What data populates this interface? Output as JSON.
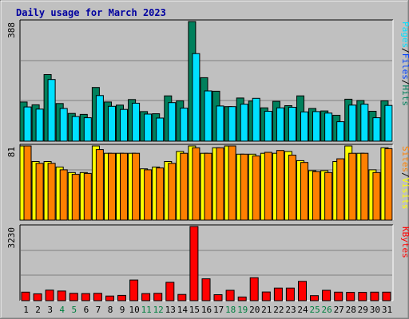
{
  "chart_data": [
    {
      "type": "bar",
      "title": "Daily usage for March 2023",
      "categories": [
        "1",
        "2",
        "3",
        "4",
        "5",
        "6",
        "7",
        "8",
        "9",
        "10",
        "11",
        "12",
        "13",
        "14",
        "15",
        "16",
        "17",
        "18",
        "19",
        "20",
        "21",
        "22",
        "23",
        "24",
        "25",
        "26",
        "27",
        "28",
        "29",
        "30",
        "31"
      ],
      "weekend_days": [
        "4",
        "5",
        "11",
        "12",
        "18",
        "19",
        "25",
        "26"
      ],
      "ymax_label": "388",
      "ylim": [
        0,
        388
      ],
      "series": [
        {
          "name": "Hits",
          "color": "#00805c",
          "values": [
            127,
            118,
            216,
            122,
            90,
            87,
            174,
            127,
            117,
            135,
            96,
            89,
            147,
            131,
            388,
            206,
            162,
            112,
            140,
            130,
            108,
            129,
            115,
            147,
            106,
            98,
            84,
            136,
            132,
            97,
            131
          ]
        },
        {
          "name": "Files",
          "color": "#00e0ff",
          "values": [
            111,
            104,
            200,
            106,
            80,
            76,
            148,
            113,
            103,
            123,
            88,
            75,
            125,
            107,
            284,
            163,
            114,
            112,
            120,
            139,
            97,
            108,
            110,
            95,
            96,
            91,
            63,
            117,
            120,
            76,
            116
          ]
        }
      ],
      "right_label": [
        "Pages",
        "/",
        "Files",
        "/",
        "Hits"
      ],
      "right_label_colors": [
        "#00e0ff",
        "#000000",
        "#0040ff",
        "#000000",
        "#00805c"
      ]
    },
    {
      "type": "bar",
      "categories": [
        "1",
        "2",
        "3",
        "4",
        "5",
        "6",
        "7",
        "8",
        "9",
        "10",
        "11",
        "12",
        "13",
        "14",
        "15",
        "16",
        "17",
        "18",
        "19",
        "20",
        "21",
        "22",
        "23",
        "24",
        "25",
        "26",
        "27",
        "28",
        "29",
        "30",
        "31"
      ],
      "ymax_label": "81",
      "ylim": [
        0,
        81
      ],
      "series": [
        {
          "name": "Visits",
          "color": "#ffff00",
          "values": [
            81,
            64,
            64,
            58,
            52,
            52,
            81,
            73,
            73,
            73,
            56,
            58,
            64,
            75,
            81,
            73,
            79,
            81,
            72,
            72,
            73,
            73,
            75,
            65,
            54,
            54,
            64,
            81,
            73,
            55,
            79
          ]
        },
        {
          "name": "Sites",
          "color": "#ff8000",
          "values": [
            81,
            62,
            62,
            55,
            50,
            51,
            77,
            73,
            73,
            73,
            55,
            57,
            62,
            73,
            79,
            73,
            79,
            81,
            72,
            70,
            74,
            76,
            71,
            63,
            53,
            52,
            67,
            73,
            73,
            52,
            78
          ]
        }
      ],
      "right_label": [
        "Sites",
        "/",
        "Visits"
      ],
      "right_label_colors": [
        "#ff8000",
        "#000000",
        "#ffff00"
      ]
    },
    {
      "type": "bar",
      "categories": [
        "1",
        "2",
        "3",
        "4",
        "5",
        "6",
        "7",
        "8",
        "9",
        "10",
        "11",
        "12",
        "13",
        "14",
        "15",
        "16",
        "17",
        "18",
        "19",
        "20",
        "21",
        "22",
        "23",
        "24",
        "25",
        "26",
        "27",
        "28",
        "29",
        "30",
        "31"
      ],
      "ymax_label": "3230",
      "ylim": [
        0,
        3230
      ],
      "series": [
        {
          "name": "KBytes",
          "color": "#ff0000",
          "values": [
            370,
            300,
            460,
            420,
            320,
            310,
            320,
            200,
            230,
            900,
            310,
            320,
            800,
            270,
            3230,
            950,
            260,
            450,
            160,
            1000,
            380,
            550,
            550,
            840,
            220,
            450,
            370,
            360,
            360,
            370,
            370
          ]
        }
      ],
      "right_label": [
        "KBytes"
      ],
      "right_label_colors": [
        "#ff0000"
      ]
    }
  ]
}
